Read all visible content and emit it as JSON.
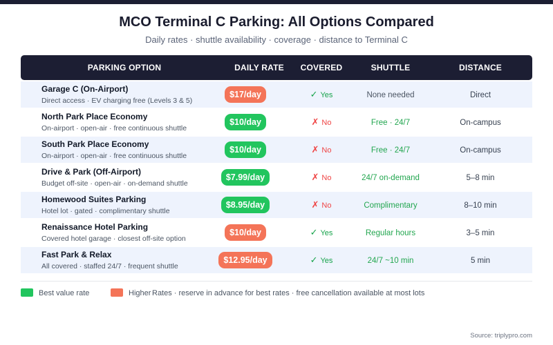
{
  "header": {
    "title": "MCO Terminal C Parking: All Options Compared",
    "subtitle": "Daily rates · shuttle availability · coverage · distance to Terminal C"
  },
  "columns": [
    "PARKING OPTION",
    "DAILY RATE",
    "COVERED",
    "SHUTTLE",
    "DISTANCE"
  ],
  "rows": [
    {
      "name": "Garage C (On-Airport)",
      "desc": "Direct access · EV charging free (Levels 3 & 5)",
      "rate": "$17/day",
      "rate_color": "orange",
      "covered": "Yes",
      "covered_mark": "✓",
      "covered_status": "yes",
      "shuttle": "None needed",
      "shuttle_color": "gray",
      "distance": "Direct"
    },
    {
      "name": "North Park Place Economy",
      "desc": "On-airport · open-air · free continuous shuttle",
      "rate": "$10/day",
      "rate_color": "green",
      "covered": "No",
      "covered_mark": "✗",
      "covered_status": "no",
      "shuttle": "Free · 24/7",
      "shuttle_color": "green",
      "distance": "On-campus"
    },
    {
      "name": "South Park Place Economy",
      "desc": "On-airport · open-air · free continuous shuttle",
      "rate": "$10/day",
      "rate_color": "green",
      "covered": "No",
      "covered_mark": "✗",
      "covered_status": "no",
      "shuttle": "Free · 24/7",
      "shuttle_color": "green",
      "distance": "On-campus"
    },
    {
      "name": "Drive & Park (Off-Airport)",
      "desc": "Budget off-site · open-air · on-demand shuttle",
      "rate": "$7.99/day",
      "rate_color": "green",
      "covered": "No",
      "covered_mark": "✗",
      "covered_status": "no",
      "shuttle": "24/7 on-demand",
      "shuttle_color": "green",
      "distance": "5–8 min"
    },
    {
      "name": "Homewood Suites Parking",
      "desc": "Hotel lot · gated · complimentary shuttle",
      "rate": "$8.95/day",
      "rate_color": "green",
      "covered": "No",
      "covered_mark": "✗",
      "covered_status": "no",
      "shuttle": "Complimentary",
      "shuttle_color": "green",
      "distance": "8–10 min"
    },
    {
      "name": "Renaissance Hotel Parking",
      "desc": "Covered hotel garage · closest off-site option",
      "rate": "$10/day",
      "rate_color": "orange",
      "covered": "Yes",
      "covered_mark": "✓",
      "covered_status": "yes",
      "shuttle": "Regular hours",
      "shuttle_color": "green",
      "distance": "3–5 min"
    },
    {
      "name": "Fast Park & Relax",
      "desc": "All covered · staffed 24/7 · frequent shuttle",
      "rate": "$12.95/day",
      "rate_color": "orange",
      "covered": "Yes",
      "covered_mark": "✓",
      "covered_status": "yes",
      "shuttle": "24/7 ~10 min",
      "shuttle_color": "green",
      "distance": "5 min"
    }
  ],
  "legend": {
    "best_value": "Best value rate",
    "higher_rate": "Higher",
    "note": "Rates · reserve in advance for best rates · free cancellation available at most lots"
  },
  "source": "Source: triplypro.com",
  "colors": {
    "green": "#22c55e",
    "orange": "#f47458",
    "header_bg": "#1c1e33",
    "row_alt": "#eef3fd"
  }
}
